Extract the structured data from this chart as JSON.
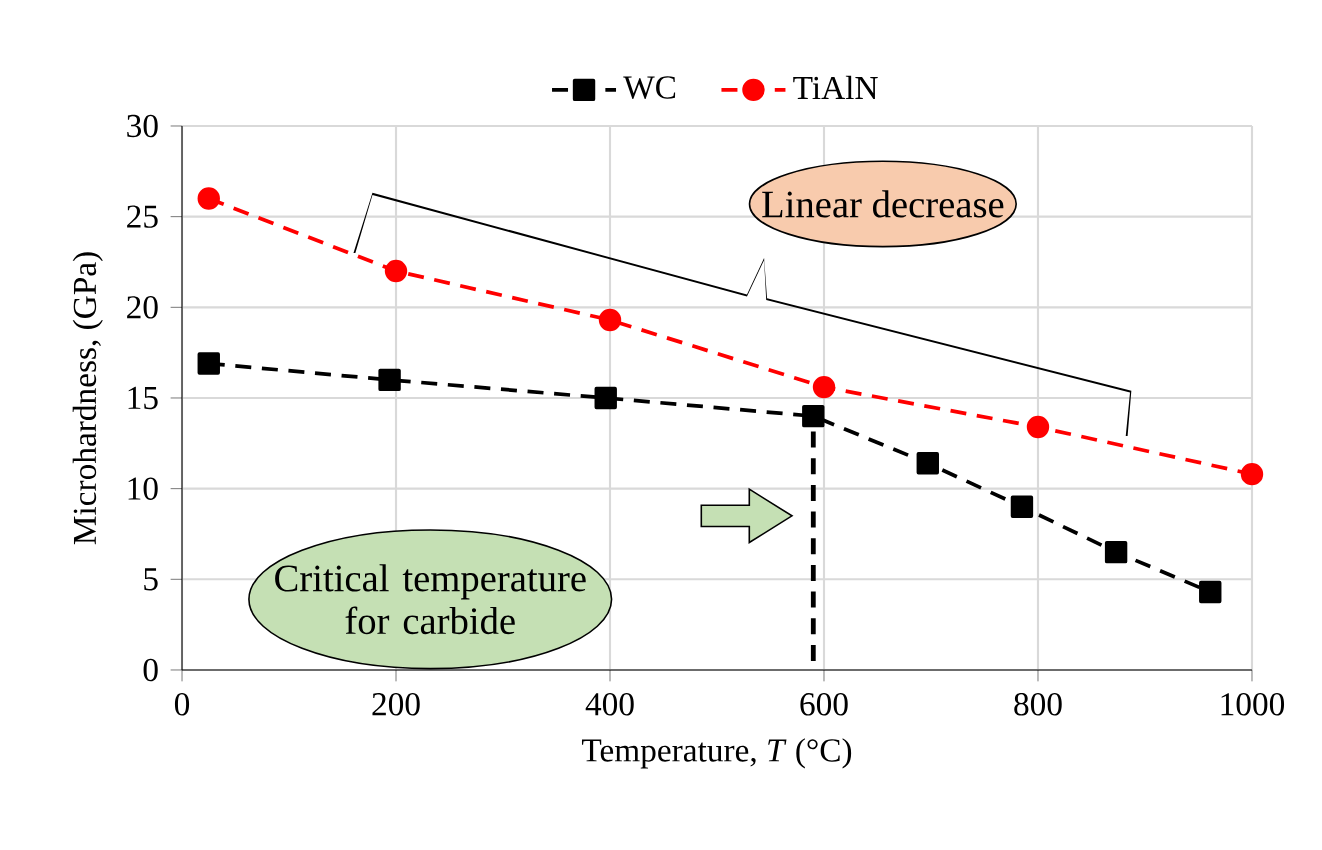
{
  "chart_data": {
    "type": "line",
    "xlabel": "Temperature, *T* (°C)",
    "ylabel": "Microhardness, (GPa)",
    "xlim": [
      0,
      1000
    ],
    "xticks": [
      0,
      200,
      400,
      600,
      800,
      1000
    ],
    "ylim": [
      0,
      30
    ],
    "yticks": [
      0,
      5,
      10,
      15,
      20,
      25,
      30
    ],
    "grid": true,
    "legend": "top",
    "line_style": "dashed",
    "series": [
      {
        "name": "WC",
        "color": "#000000",
        "marker": "square",
        "x": [
          25,
          194,
          396,
          590,
          697,
          785,
          873,
          961
        ],
        "values": [
          16.9,
          16,
          15,
          14,
          11.4,
          9,
          6.5,
          4.3
        ]
      },
      {
        "name": "TiAlN",
        "color": "#ff0000",
        "marker": "circle",
        "x": [
          25,
          200,
          400,
          600,
          800,
          1000
        ],
        "values": [
          26,
          22,
          19.3,
          15.6,
          13.4,
          10.8
        ]
      },
      {
        "color": "#000000",
        "marker": "none",
        "x": [
          590,
          590
        ],
        "values": [
          0.5,
          14
        ]
      }
    ],
    "annotations": [
      "Linear decrease",
      "Critical temperature for carbide"
    ]
  }
}
